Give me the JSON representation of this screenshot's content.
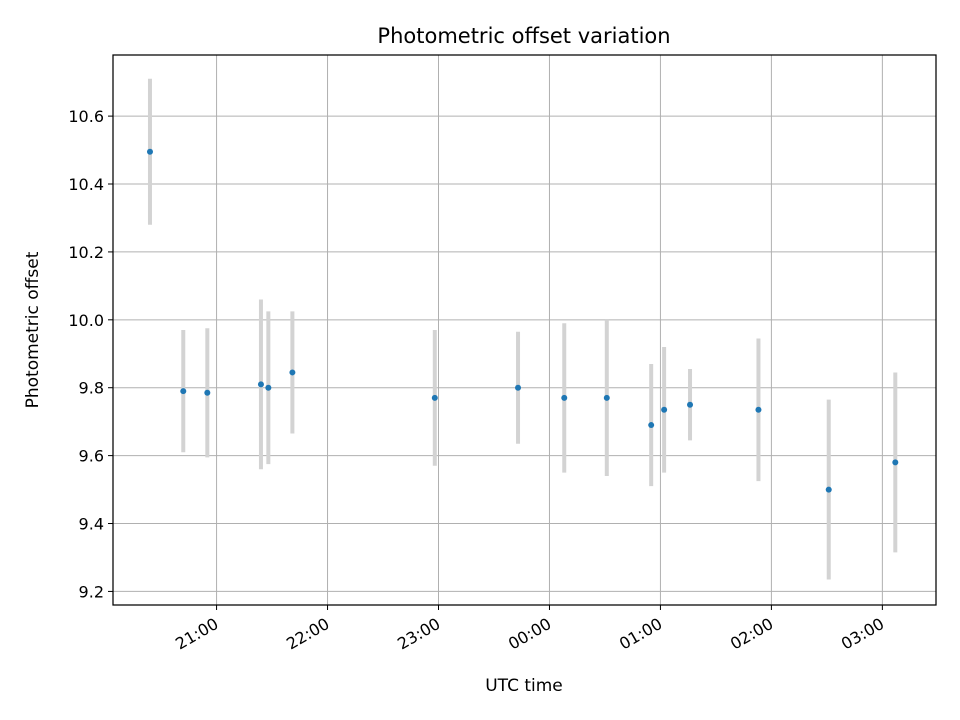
{
  "chart_data": {
    "type": "scatter",
    "title": "Photometric offset variation",
    "xlabel": "UTC time",
    "ylabel": "Photometric offset",
    "x_axis_kind": "time",
    "x_tick_labels": [
      "21:00",
      "22:00",
      "23:00",
      "00:00",
      "01:00",
      "02:00",
      "03:00"
    ],
    "y_tick_labels": [
      "9.2",
      "9.4",
      "9.6",
      "9.8",
      "10.0",
      "10.2",
      "10.4",
      "10.6"
    ],
    "y_ticks": [
      9.2,
      9.4,
      9.6,
      9.8,
      10.0,
      10.2,
      10.4,
      10.6
    ],
    "xlim": [
      "20:04",
      "03:29"
    ],
    "ylim": [
      9.16,
      10.78
    ],
    "grid": true,
    "colors": {
      "marker": "#1f77b4",
      "errorbar": "#d3d3d3",
      "grid": "#b0b0b0"
    },
    "series": [
      {
        "points": [
          {
            "x": "20:24",
            "y": 10.495,
            "yerr": 0.215
          },
          {
            "x": "20:42",
            "y": 9.79,
            "yerr": 0.18
          },
          {
            "x": "20:55",
            "y": 9.785,
            "yerr": 0.19
          },
          {
            "x": "21:24",
            "y": 9.81,
            "yerr": 0.25
          },
          {
            "x": "21:28",
            "y": 9.8,
            "yerr": 0.225
          },
          {
            "x": "21:41",
            "y": 9.845,
            "yerr": 0.18
          },
          {
            "x": "22:58",
            "y": 9.77,
            "yerr": 0.2
          },
          {
            "x": "23:43",
            "y": 9.8,
            "yerr": 0.165
          },
          {
            "x": "00:08",
            "y": 9.77,
            "yerr": 0.22
          },
          {
            "x": "00:31",
            "y": 9.77,
            "yerr": 0.23
          },
          {
            "x": "00:55",
            "y": 9.69,
            "yerr": 0.18
          },
          {
            "x": "01:02",
            "y": 9.735,
            "yerr": 0.185
          },
          {
            "x": "01:16",
            "y": 9.75,
            "yerr": 0.105
          },
          {
            "x": "01:53",
            "y": 9.735,
            "yerr": 0.21
          },
          {
            "x": "02:31",
            "y": 9.5,
            "yerr": 0.265
          },
          {
            "x": "03:07",
            "y": 9.58,
            "yerr": 0.265
          }
        ]
      }
    ]
  }
}
